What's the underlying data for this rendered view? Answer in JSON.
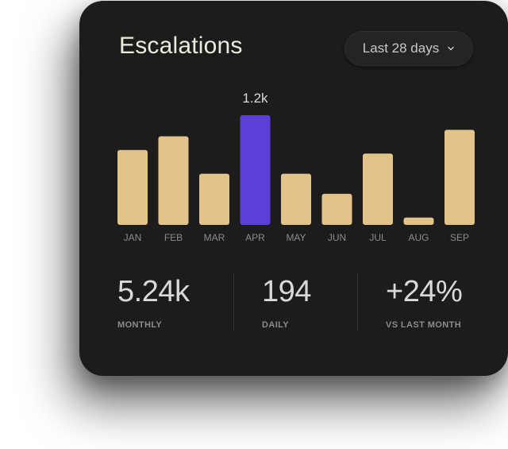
{
  "card": {
    "title": "Escalations",
    "range_selector": {
      "label": "Last 28 days",
      "icon": "chevron-down-icon"
    }
  },
  "chart_data": {
    "type": "bar",
    "categories": [
      "JAN",
      "FEB",
      "MAR",
      "APR",
      "MAY",
      "JUN",
      "JUL",
      "AUG",
      "SEP"
    ],
    "values": [
      820,
      970,
      560,
      1200,
      560,
      340,
      780,
      80,
      1040
    ],
    "highlighted_index": 3,
    "highlighted_label": "1.2k",
    "ylim": [
      0,
      1200
    ],
    "grid": false,
    "colors": {
      "bar": "#e2c48b",
      "highlight": "#5b3fd6",
      "tick_label": "#8c8c8c",
      "value_label": "#d9d9d9"
    }
  },
  "stats": [
    {
      "value": "5.24k",
      "label": "MONTHLY"
    },
    {
      "value": "194",
      "label": "DAILY"
    },
    {
      "value": "+24%",
      "label": "VS LAST MONTH"
    }
  ]
}
